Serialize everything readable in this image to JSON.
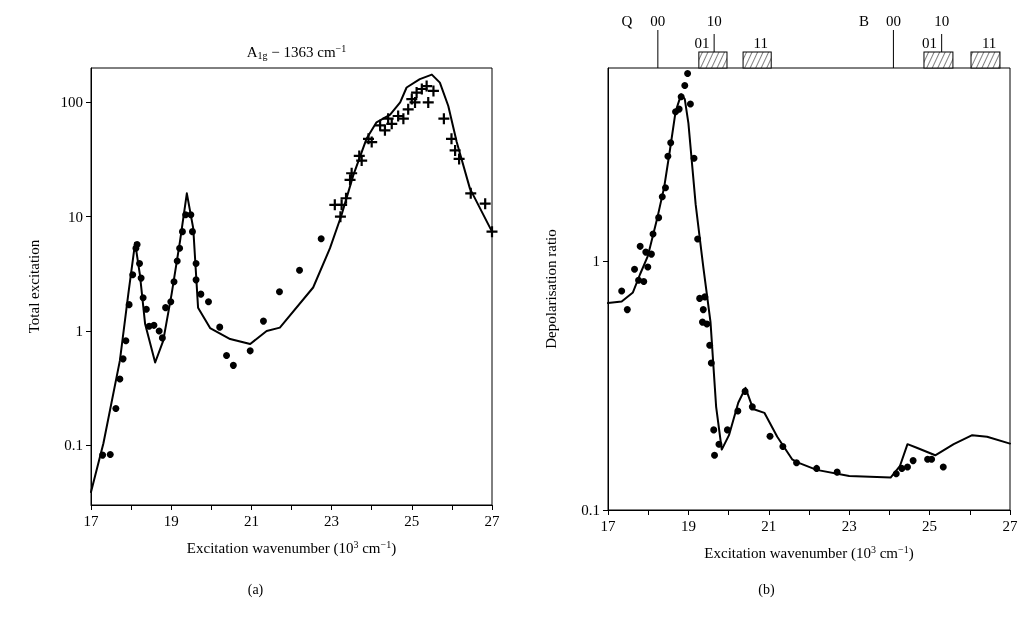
{
  "chart_data": [
    {
      "type": "scatter",
      "title": "A$_{1g}$ − 1363 cm$^{−1}$",
      "xlabel": "Excitation wavenumber (10$^{3}$ cm$^{−1}$)",
      "ylabel": "Total excitation",
      "annotations": [
        "(a)"
      ],
      "log": "y",
      "xlim": [
        17,
        27
      ],
      "xticks": [
        17,
        {
          "value": 18,
          "label": null
        },
        19,
        {
          "value": 20,
          "label": null
        },
        21,
        {
          "value": 22,
          "label": null
        },
        23,
        {
          "value": 24,
          "label": null
        },
        25,
        {
          "value": 26,
          "label": null
        },
        27
      ],
      "ylim": [
        0.03,
        200
      ],
      "yticks": [
        0.1,
        1,
        10,
        100
      ],
      "series": [
        {
          "type": "line",
          "color": "#000000",
          "marker": "none",
          "x": [
            17,
            17.31,
            17.72,
            17.93,
            18.1,
            18.22,
            18.35,
            18.6,
            18.8,
            19.01,
            19.22,
            19.39,
            19.55,
            19.67,
            19.97,
            20.47,
            20.97,
            21.38,
            21.71,
            22.54,
            22.96,
            23.25,
            23.54,
            23.87,
            24.12,
            24.46,
            24.71,
            24.87,
            25.2,
            25.5,
            25.7,
            25.91,
            26.12,
            26.45,
            27
          ],
          "values": [
            0.039,
            0.104,
            0.55,
            2.1,
            5.9,
            3.1,
            1.15,
            0.53,
            0.82,
            2.1,
            6.1,
            16,
            7.9,
            1.6,
            1.06,
            0.85,
            0.77,
            1.0,
            1.07,
            2.4,
            5.3,
            10.4,
            23,
            48,
            67,
            78,
            100,
            135,
            160,
            175,
            149,
            93,
            45,
            17.6,
            7.4
          ]
        },
        {
          "color": "#000000",
          "marker": "circle",
          "x": [
            17.29,
            17.48,
            17.62,
            17.72,
            17.8,
            17.87,
            17.95,
            18.04,
            18.12,
            18.15,
            18.21,
            18.25,
            18.3,
            18.38,
            18.45,
            18.57,
            18.7,
            18.78,
            18.86,
            18.99,
            19.07,
            19.15,
            19.21,
            19.28,
            19.36,
            19.49,
            19.53,
            19.62,
            19.62,
            19.74,
            19.93,
            20.21,
            20.38,
            20.55,
            20.97,
            21.3,
            21.7,
            22.2,
            22.74
          ],
          "values": [
            0.082,
            0.083,
            0.21,
            0.38,
            0.57,
            0.82,
            1.7,
            3.1,
            5.3,
            5.7,
            3.9,
            2.9,
            1.95,
            1.55,
            1.1,
            1.12,
            1.0,
            0.87,
            1.6,
            1.8,
            2.7,
            4.1,
            5.3,
            7.4,
            10.4,
            10.4,
            7.4,
            3.9,
            2.8,
            2.1,
            1.8,
            1.08,
            0.61,
            0.5,
            0.67,
            1.22,
            2.2,
            3.4,
            6.4
          ]
        },
        {
          "color": "#000000",
          "marker": "cross",
          "x": [
            23.08,
            23.25,
            23.22,
            23.36,
            23.46,
            23.5,
            23.69,
            23.75,
            23.92,
            24.0,
            24.21,
            24.33,
            24.41,
            24.5,
            24.66,
            24.79,
            24.91,
            25.0,
            25.08,
            25.12,
            25.25,
            25.37,
            25.41,
            25.54,
            25.8,
            25.99,
            26.08,
            26.18,
            26.47,
            26.83,
            27.0
          ],
          "values": [
            12.7,
            12.7,
            10,
            14.5,
            21,
            24,
            34,
            31,
            48,
            45,
            63,
            57,
            72,
            65,
            76,
            72,
            87,
            107,
            100,
            122,
            131,
            139,
            100,
            126,
            72,
            48,
            38,
            32,
            16,
            13,
            7.4
          ]
        }
      ]
    },
    {
      "type": "scatter",
      "xlabel": "Excitation wavenumber (10$^{3}$ cm$^{−1}$)",
      "ylabel": "Depolarisation ratio",
      "annotations": [
        "(b)",
        "Q",
        "00",
        "10",
        "01",
        "11",
        "B",
        "00",
        "10",
        "01",
        "11"
      ],
      "log": "y",
      "xlim": [
        17,
        27
      ],
      "xticks": [
        17,
        {
          "value": 18,
          "label": null
        },
        19,
        {
          "value": 20,
          "label": null
        },
        21,
        {
          "value": 22,
          "label": null
        },
        23,
        {
          "value": 24,
          "label": null
        },
        25,
        {
          "value": 26,
          "label": null
        },
        27
      ],
      "ylim": [
        0.1,
        6
      ],
      "yticks": [
        0.1,
        1
      ],
      "series": [
        {
          "type": "line",
          "color": "#000000",
          "marker": "none",
          "x": [
            17,
            17.34,
            17.62,
            17.8,
            17.99,
            18.22,
            18.4,
            18.54,
            18.68,
            18.82,
            18.91,
            19.0,
            19.18,
            19.37,
            19.55,
            19.69,
            19.83,
            20.01,
            20.24,
            20.42,
            20.61,
            20.89,
            21.21,
            21.58,
            21.73,
            22.19,
            23.0,
            24.03,
            24.26,
            24.45,
            24.68,
            25.14,
            25.6,
            26.06,
            26.43,
            27.0
          ],
          "values": [
            0.68,
            0.69,
            0.75,
            0.89,
            1.05,
            1.48,
            2.0,
            2.8,
            4.0,
            4.7,
            4.5,
            3.6,
            1.7,
            0.95,
            0.57,
            0.26,
            0.175,
            0.2,
            0.27,
            0.31,
            0.255,
            0.246,
            0.197,
            0.16,
            0.155,
            0.145,
            0.137,
            0.135,
            0.15,
            0.184,
            0.178,
            0.166,
            0.184,
            0.2,
            0.197,
            0.185
          ]
        },
        {
          "color": "#000000",
          "marker": "circle",
          "x": [
            17.34,
            17.48,
            17.66,
            17.8,
            17.76,
            17.89,
            17.99,
            17.94,
            18.08,
            18.12,
            18.26,
            18.35,
            18.43,
            18.49,
            18.56,
            18.68,
            18.77,
            18.82,
            18.91,
            18.98,
            19.05,
            19.14,
            19.23,
            19.28,
            19.41,
            19.37,
            19.35,
            19.46,
            19.53,
            19.57,
            19.63,
            19.65,
            19.76,
            19.97,
            20.23,
            20.41,
            20.59,
            21.03,
            21.35,
            21.69,
            22.19,
            22.7,
            24.17,
            24.31,
            24.45,
            24.59,
            24.95,
            25.05,
            25.34
          ],
          "values": [
            0.76,
            0.64,
            0.93,
            1.15,
            0.84,
            0.83,
            0.95,
            1.09,
            1.07,
            1.29,
            1.5,
            1.82,
            1.98,
            2.65,
            3.0,
            4.0,
            4.1,
            4.6,
            5.1,
            5.7,
            4.3,
            2.6,
            1.23,
            0.71,
            0.72,
            0.64,
            0.57,
            0.56,
            0.46,
            0.39,
            0.21,
            0.166,
            0.184,
            0.21,
            0.25,
            0.3,
            0.26,
            0.198,
            0.18,
            0.155,
            0.147,
            0.142,
            0.14,
            0.147,
            0.149,
            0.158,
            0.16,
            0.16,
            0.149
          ]
        }
      ]
    }
  ]
}
